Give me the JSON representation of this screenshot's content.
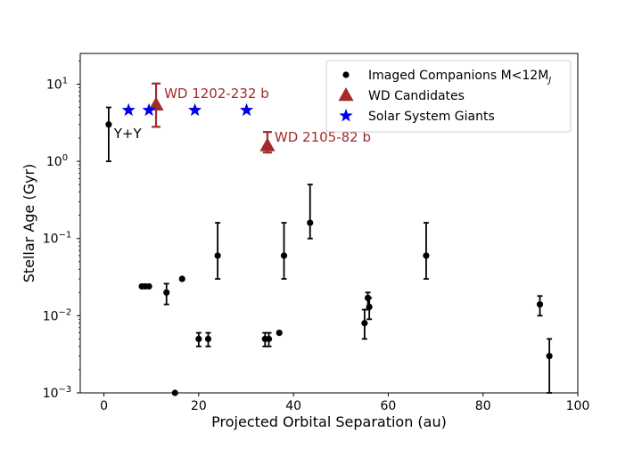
{
  "chart_data": {
    "type": "scatter",
    "title": "",
    "xlabel": "Projected Orbital Separation (au)",
    "ylabel": "Stellar Age (Gyr)",
    "xlim": [
      -5,
      100
    ],
    "ylim": [
      0.001,
      25
    ],
    "yscale": "log",
    "grid": false,
    "legend_position": "top-right",
    "x_ticks": [
      {
        "value": 0,
        "label": "0"
      },
      {
        "value": 20,
        "label": "20"
      },
      {
        "value": 40,
        "label": "40"
      },
      {
        "value": 60,
        "label": "60"
      },
      {
        "value": 80,
        "label": "80"
      },
      {
        "value": 100,
        "label": "100"
      }
    ],
    "y_ticks": [
      {
        "value": 0.001,
        "base": "10",
        "exp": "−3"
      },
      {
        "value": 0.01,
        "base": "10",
        "exp": "−2"
      },
      {
        "value": 0.1,
        "base": "10",
        "exp": "−1"
      },
      {
        "value": 1,
        "base": "10",
        "exp": "0"
      },
      {
        "value": 10,
        "base": "10",
        "exp": "1"
      }
    ],
    "legend": [
      {
        "label": "Imaged Companions M<12M",
        "sub": "J",
        "marker": "circle",
        "color": "#000000"
      },
      {
        "label": "WD Candidates",
        "sub": "",
        "marker": "triangle",
        "color": "#a52a2a"
      },
      {
        "label": "Solar System Giants",
        "sub": "",
        "marker": "star",
        "color": "#0000ee"
      }
    ],
    "series": [
      {
        "name": "Imaged Companions M<12MJ",
        "marker": "circle",
        "color": "#000000",
        "points": [
          {
            "x": 1,
            "y": 3,
            "lo": 1,
            "hi": 5
          },
          {
            "x": 8,
            "y": 0.024
          },
          {
            "x": 8.7,
            "y": 0.024
          },
          {
            "x": 9.5,
            "y": 0.024
          },
          {
            "x": 13.2,
            "y": 0.02,
            "lo": 0.014,
            "hi": 0.026
          },
          {
            "x": 15,
            "y": 0.001
          },
          {
            "x": 16.5,
            "y": 0.03
          },
          {
            "x": 20,
            "y": 0.005,
            "lo": 0.004,
            "hi": 0.006
          },
          {
            "x": 22,
            "y": 0.005,
            "lo": 0.004,
            "hi": 0.006
          },
          {
            "x": 24,
            "y": 0.06,
            "lo": 0.03,
            "hi": 0.16
          },
          {
            "x": 34,
            "y": 0.005,
            "lo": 0.004,
            "hi": 0.006
          },
          {
            "x": 34.8,
            "y": 0.005,
            "lo": 0.004,
            "hi": 0.006
          },
          {
            "x": 37,
            "y": 0.006
          },
          {
            "x": 38,
            "y": 0.06,
            "lo": 0.03,
            "hi": 0.16
          },
          {
            "x": 43.5,
            "y": 0.16,
            "lo": 0.1,
            "hi": 0.5
          },
          {
            "x": 55,
            "y": 0.008,
            "lo": 0.005,
            "hi": 0.012
          },
          {
            "x": 55.7,
            "y": 0.017,
            "lo": 0.012,
            "hi": 0.02
          },
          {
            "x": 56,
            "y": 0.013,
            "lo": 0.009,
            "hi": 0.017
          },
          {
            "x": 68,
            "y": 0.06,
            "lo": 0.03,
            "hi": 0.16
          },
          {
            "x": 92,
            "y": 0.014,
            "lo": 0.01,
            "hi": 0.018
          },
          {
            "x": 94,
            "y": 0.003,
            "lo": 0.001,
            "hi": 0.005
          }
        ]
      },
      {
        "name": "WD Candidates",
        "marker": "triangle",
        "color": "#a52a2a",
        "points": [
          {
            "x": 11,
            "y": 5.4,
            "lo": 2.8,
            "hi": 10.2
          },
          {
            "x": 34.5,
            "y": 1.6,
            "lo": 1.3,
            "hi": 2.4
          }
        ]
      },
      {
        "name": "Solar System Giants",
        "marker": "star",
        "color": "#0000ee",
        "points": [
          {
            "x": 5.2,
            "y": 4.6
          },
          {
            "x": 9.5,
            "y": 4.6
          },
          {
            "x": 19.2,
            "y": 4.6
          },
          {
            "x": 30.1,
            "y": 4.6
          }
        ]
      }
    ],
    "annotations": [
      {
        "text": "Y+Y",
        "x": 2.1,
        "y": 2.0,
        "color": "#000000"
      },
      {
        "text": "WD 1202-232 b",
        "x": 12.7,
        "y": 6.6,
        "color": "#a52a2a"
      },
      {
        "text": "WD 2105-82 b",
        "x": 36,
        "y": 1.8,
        "color": "#a52a2a"
      }
    ]
  }
}
